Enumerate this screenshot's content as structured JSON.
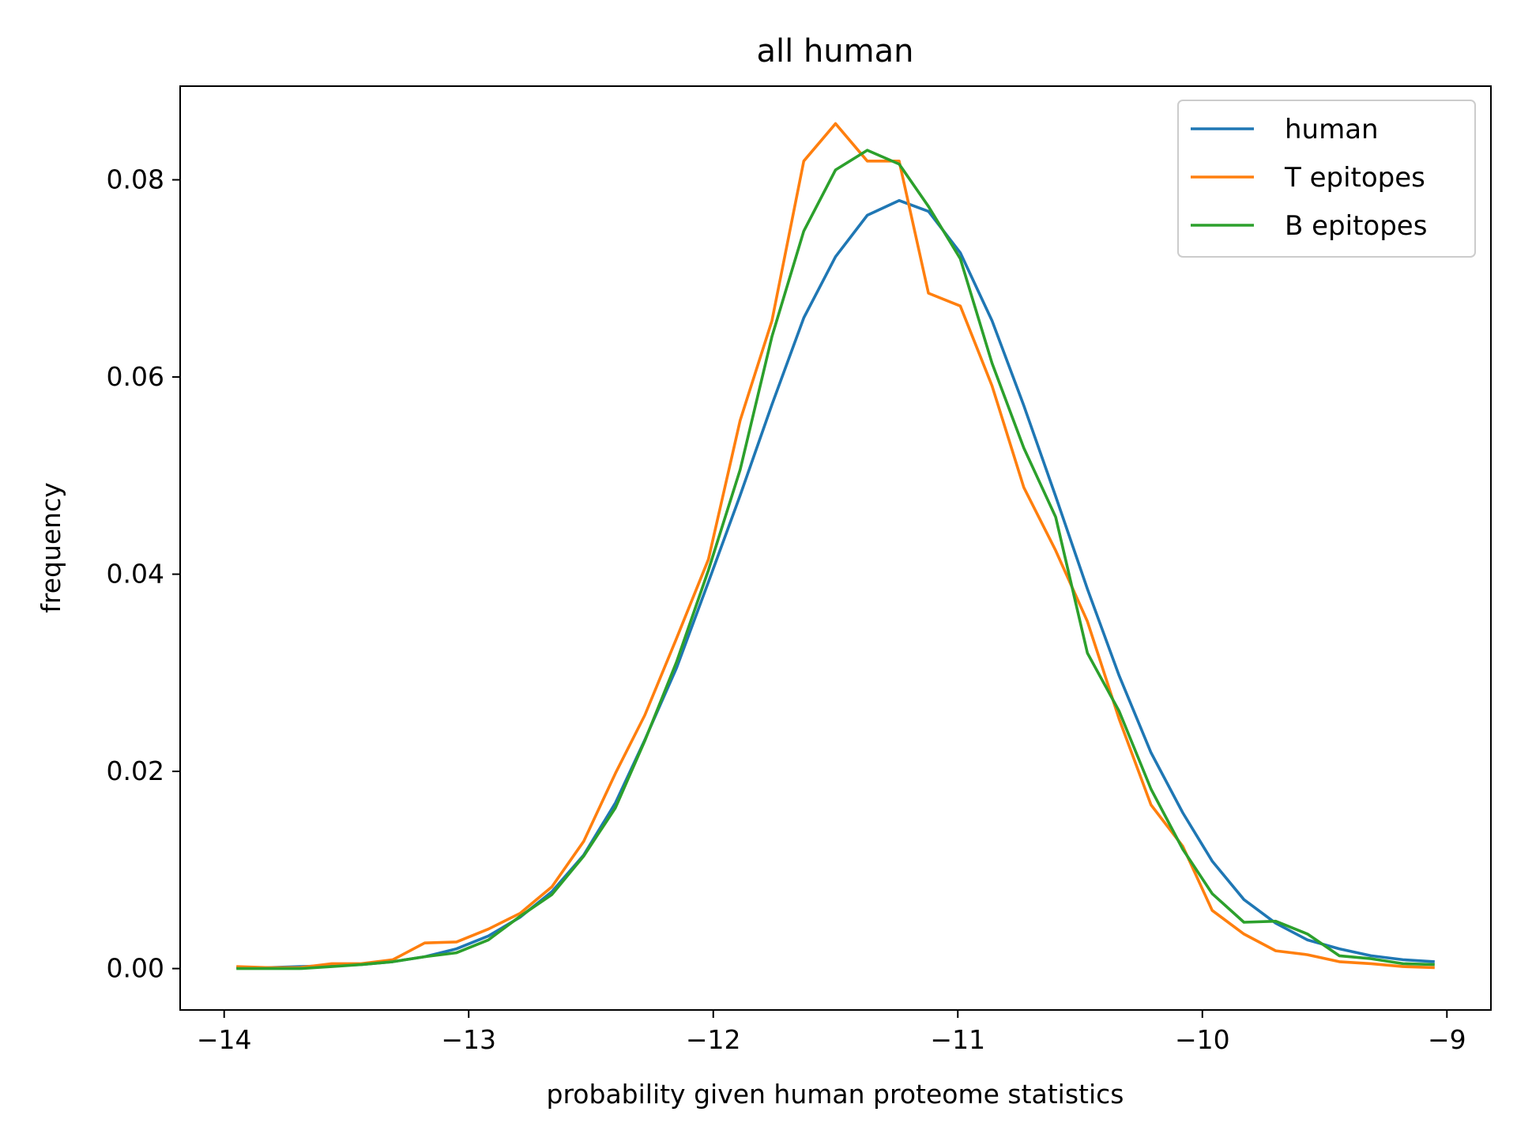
{
  "chart_data": {
    "type": "line",
    "title": "all human",
    "xlabel": "probability given human proteome statistics",
    "ylabel": "frequency",
    "xlim": [
      -14.18,
      -8.82
    ],
    "ylim": [
      -0.0042,
      0.0895
    ],
    "xticks": [
      -14,
      -13,
      -12,
      -11,
      -10,
      -9
    ],
    "xtick_labels": [
      "−14",
      "−13",
      "−12",
      "−11",
      "−10",
      "−9"
    ],
    "yticks": [
      0.0,
      0.02,
      0.04,
      0.06,
      0.08
    ],
    "ytick_labels": [
      "0.00",
      "0.02",
      "0.04",
      "0.06",
      "0.08"
    ],
    "grid": false,
    "legend_position": "top-right",
    "x": [
      -13.95,
      -13.82,
      -13.69,
      -13.56,
      -13.44,
      -13.31,
      -13.18,
      -13.05,
      -12.92,
      -12.79,
      -12.66,
      -12.53,
      -12.4,
      -12.28,
      -12.15,
      -12.02,
      -11.89,
      -11.76,
      -11.63,
      -11.5,
      -11.37,
      -11.24,
      -11.12,
      -10.99,
      -10.86,
      -10.73,
      -10.6,
      -10.47,
      -10.34,
      -10.21,
      -10.08,
      -9.96,
      -9.83,
      -9.7,
      -9.57,
      -9.44,
      -9.31,
      -9.18,
      -9.05
    ],
    "series": [
      {
        "name": "human",
        "color": "#1f77b4",
        "values": [
          0.0001,
          0.0001,
          0.0002,
          0.0003,
          0.0004,
          0.0007,
          0.0012,
          0.002,
          0.0033,
          0.0052,
          0.0078,
          0.0115,
          0.0168,
          0.0232,
          0.0305,
          0.0392,
          0.048,
          0.0572,
          0.066,
          0.0722,
          0.0764,
          0.0779,
          0.0768,
          0.0726,
          0.0657,
          0.0571,
          0.0479,
          0.0385,
          0.0297,
          0.0219,
          0.0158,
          0.0109,
          0.007,
          0.0046,
          0.0029,
          0.002,
          0.0013,
          0.0009,
          0.0007
        ]
      },
      {
        "name": "T epitopes",
        "color": "#ff7f0e",
        "values": [
          0.0002,
          0.0001,
          0.0001,
          0.0005,
          0.0005,
          0.0009,
          0.0026,
          0.0027,
          0.004,
          0.0056,
          0.0083,
          0.0129,
          0.0198,
          0.0257,
          0.0335,
          0.0415,
          0.0556,
          0.0657,
          0.0819,
          0.0857,
          0.0819,
          0.0819,
          0.0685,
          0.0672,
          0.0591,
          0.0488,
          0.0424,
          0.0352,
          0.0253,
          0.0166,
          0.0124,
          0.0059,
          0.0035,
          0.0018,
          0.0014,
          0.0007,
          0.0005,
          0.0002,
          0.0001
        ]
      },
      {
        "name": "B epitopes",
        "color": "#2ca02c",
        "values": [
          0.0,
          0.0,
          0.0,
          0.0002,
          0.0004,
          0.0007,
          0.0012,
          0.0016,
          0.0029,
          0.0053,
          0.0075,
          0.0114,
          0.0163,
          0.0231,
          0.0311,
          0.0404,
          0.0506,
          0.0641,
          0.0748,
          0.081,
          0.083,
          0.0816,
          0.0773,
          0.072,
          0.0614,
          0.0528,
          0.0458,
          0.032,
          0.0261,
          0.0182,
          0.0121,
          0.0076,
          0.0047,
          0.0048,
          0.0035,
          0.0013,
          0.001,
          0.0005,
          0.0004
        ]
      }
    ]
  }
}
